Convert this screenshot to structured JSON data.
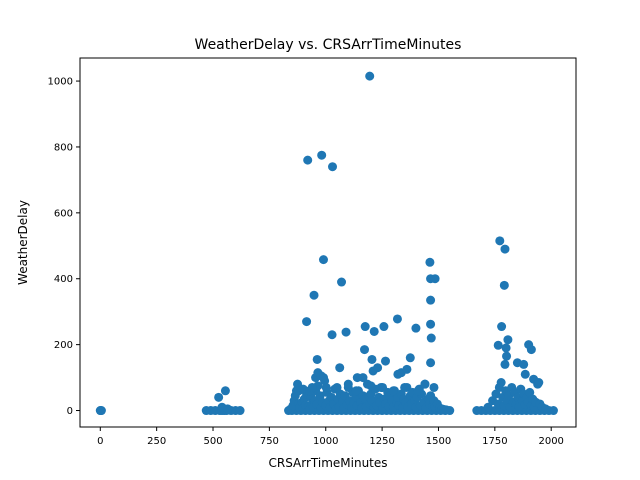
{
  "chart_data": {
    "type": "scatter",
    "title": "WeatherDelay vs. CRSArrTimeMinutes",
    "xlabel": "CRSArrTimeMinutes",
    "ylabel": "WeatherDelay",
    "xlim": [
      -90,
      2110
    ],
    "ylim": [
      -50,
      1070
    ],
    "xticks": [
      0,
      250,
      500,
      750,
      1000,
      1250,
      1500,
      1750,
      2000
    ],
    "yticks": [
      0,
      200,
      400,
      600,
      800,
      1000
    ],
    "grid": false,
    "legend": "none",
    "marker_color": "#1f77b4",
    "points": [
      [
        0,
        0
      ],
      [
        2,
        0
      ],
      [
        5,
        0
      ],
      [
        470,
        0
      ],
      [
        490,
        0
      ],
      [
        510,
        0
      ],
      [
        530,
        0
      ],
      [
        540,
        0
      ],
      [
        550,
        0
      ],
      [
        560,
        0
      ],
      [
        580,
        0
      ],
      [
        600,
        0
      ],
      [
        620,
        0
      ],
      [
        525,
        40
      ],
      [
        540,
        10
      ],
      [
        555,
        60
      ],
      [
        565,
        5
      ],
      [
        835,
        0
      ],
      [
        850,
        0
      ],
      [
        870,
        0
      ],
      [
        890,
        0
      ],
      [
        910,
        0
      ],
      [
        930,
        0
      ],
      [
        950,
        0
      ],
      [
        970,
        0
      ],
      [
        990,
        0
      ],
      [
        1010,
        0
      ],
      [
        1030,
        0
      ],
      [
        1050,
        0
      ],
      [
        1070,
        0
      ],
      [
        1090,
        0
      ],
      [
        1110,
        0
      ],
      [
        1130,
        0
      ],
      [
        1150,
        0
      ],
      [
        1170,
        0
      ],
      [
        1190,
        0
      ],
      [
        1210,
        0
      ],
      [
        1230,
        0
      ],
      [
        1250,
        0
      ],
      [
        1270,
        0
      ],
      [
        1290,
        0
      ],
      [
        1310,
        0
      ],
      [
        1330,
        0
      ],
      [
        1350,
        0
      ],
      [
        1370,
        0
      ],
      [
        1390,
        0
      ],
      [
        1410,
        0
      ],
      [
        1430,
        0
      ],
      [
        1450,
        0
      ],
      [
        1470,
        0
      ],
      [
        1490,
        0
      ],
      [
        1510,
        0
      ],
      [
        1530,
        0
      ],
      [
        1550,
        0
      ],
      [
        845,
        5
      ],
      [
        855,
        15
      ],
      [
        860,
        30
      ],
      [
        865,
        45
      ],
      [
        870,
        60
      ],
      [
        875,
        80
      ],
      [
        880,
        20
      ],
      [
        885,
        10
      ],
      [
        895,
        25
      ],
      [
        900,
        8
      ],
      [
        905,
        35
      ],
      [
        910,
        15
      ],
      [
        915,
        50
      ],
      [
        925,
        12
      ],
      [
        930,
        5
      ],
      [
        935,
        40
      ],
      [
        940,
        22
      ],
      [
        945,
        10
      ],
      [
        950,
        30
      ],
      [
        955,
        60
      ],
      [
        960,
        18
      ],
      [
        965,
        75
      ],
      [
        975,
        45
      ],
      [
        980,
        8
      ],
      [
        985,
        25
      ],
      [
        995,
        90
      ],
      [
        1000,
        15
      ],
      [
        1005,
        55
      ],
      [
        1015,
        30
      ],
      [
        1020,
        10
      ],
      [
        1025,
        40
      ],
      [
        1035,
        20
      ],
      [
        1040,
        65
      ],
      [
        1045,
        5
      ],
      [
        1055,
        35
      ],
      [
        1060,
        12
      ],
      [
        1065,
        50
      ],
      [
        1075,
        28
      ],
      [
        1080,
        8
      ],
      [
        1085,
        45
      ],
      [
        1095,
        18
      ],
      [
        1100,
        70
      ],
      [
        1105,
        30
      ],
      [
        1115,
        10
      ],
      [
        1120,
        55
      ],
      [
        1125,
        22
      ],
      [
        1135,
        40
      ],
      [
        1140,
        15
      ],
      [
        1145,
        60
      ],
      [
        1155,
        25
      ],
      [
        1160,
        8
      ],
      [
        1165,
        45
      ],
      [
        1175,
        35
      ],
      [
        1180,
        12
      ],
      [
        1185,
        80
      ],
      [
        1195,
        20
      ],
      [
        1200,
        50
      ],
      [
        1205,
        30
      ],
      [
        1215,
        10
      ],
      [
        1220,
        65
      ],
      [
        1225,
        15
      ],
      [
        1235,
        40
      ],
      [
        1240,
        25
      ],
      [
        1245,
        70
      ],
      [
        1255,
        8
      ],
      [
        1260,
        35
      ],
      [
        1265,
        20
      ],
      [
        1275,
        55
      ],
      [
        1280,
        12
      ],
      [
        1285,
        45
      ],
      [
        1295,
        30
      ],
      [
        1300,
        10
      ],
      [
        1305,
        60
      ],
      [
        1315,
        22
      ],
      [
        1320,
        40
      ],
      [
        1325,
        15
      ],
      [
        1335,
        50
      ],
      [
        1340,
        8
      ],
      [
        1345,
        35
      ],
      [
        1355,
        25
      ],
      [
        1360,
        70
      ],
      [
        1365,
        12
      ],
      [
        1375,
        45
      ],
      [
        1380,
        20
      ],
      [
        1385,
        55
      ],
      [
        1395,
        30
      ],
      [
        1400,
        10
      ],
      [
        1405,
        40
      ],
      [
        1415,
        65
      ],
      [
        1420,
        15
      ],
      [
        1425,
        50
      ],
      [
        1435,
        25
      ],
      [
        1440,
        80
      ],
      [
        1445,
        8
      ],
      [
        1455,
        35
      ],
      [
        1460,
        20
      ],
      [
        1465,
        45
      ],
      [
        1475,
        12
      ],
      [
        1480,
        30
      ],
      [
        1485,
        10
      ],
      [
        1495,
        20
      ],
      [
        1505,
        8
      ],
      [
        1515,
        5
      ],
      [
        1525,
        3
      ],
      [
        1535,
        2
      ],
      [
        880,
        60
      ],
      [
        900,
        65
      ],
      [
        928,
        60
      ],
      [
        940,
        70
      ],
      [
        955,
        100
      ],
      [
        962,
        155
      ],
      [
        965,
        115
      ],
      [
        980,
        105
      ],
      [
        990,
        100
      ],
      [
        1002,
        70
      ],
      [
        1050,
        70
      ],
      [
        1062,
        130
      ],
      [
        1100,
        80
      ],
      [
        1135,
        60
      ],
      [
        1140,
        100
      ],
      [
        1165,
        100
      ],
      [
        1172,
        185
      ],
      [
        1200,
        75
      ],
      [
        1210,
        120
      ],
      [
        1230,
        130
      ],
      [
        1252,
        70
      ],
      [
        1265,
        150
      ],
      [
        1300,
        60
      ],
      [
        1320,
        110
      ],
      [
        1335,
        115
      ],
      [
        1350,
        70
      ],
      [
        1360,
        125
      ],
      [
        1375,
        160
      ],
      [
        1410,
        60
      ],
      [
        1440,
        80
      ],
      [
        1465,
        145
      ],
      [
        1480,
        70
      ],
      [
        915,
        270
      ],
      [
        920,
        760
      ],
      [
        948,
        350
      ],
      [
        982,
        775
      ],
      [
        990,
        458
      ],
      [
        1028,
        230
      ],
      [
        1030,
        740
      ],
      [
        1070,
        390
      ],
      [
        1090,
        238
      ],
      [
        1175,
        255
      ],
      [
        1195,
        1015
      ],
      [
        1205,
        155
      ],
      [
        1215,
        240
      ],
      [
        1258,
        255
      ],
      [
        1318,
        278
      ],
      [
        1400,
        250
      ],
      [
        1462,
        450
      ],
      [
        1465,
        400
      ],
      [
        1465,
        335
      ],
      [
        1465,
        262
      ],
      [
        1468,
        220
      ],
      [
        1485,
        400
      ],
      [
        1670,
        0
      ],
      [
        1690,
        0
      ],
      [
        1710,
        0
      ],
      [
        1730,
        0
      ],
      [
        1750,
        0
      ],
      [
        1770,
        0
      ],
      [
        1790,
        0
      ],
      [
        1810,
        0
      ],
      [
        1830,
        0
      ],
      [
        1850,
        0
      ],
      [
        1870,
        0
      ],
      [
        1890,
        0
      ],
      [
        1910,
        0
      ],
      [
        1930,
        0
      ],
      [
        1950,
        0
      ],
      [
        1970,
        0
      ],
      [
        1990,
        0
      ],
      [
        2010,
        0
      ],
      [
        1720,
        10
      ],
      [
        1740,
        30
      ],
      [
        1755,
        50
      ],
      [
        1765,
        20
      ],
      [
        1770,
        70
      ],
      [
        1778,
        85
      ],
      [
        1785,
        40
      ],
      [
        1792,
        15
      ],
      [
        1798,
        60
      ],
      [
        1805,
        30
      ],
      [
        1812,
        45
      ],
      [
        1818,
        10
      ],
      [
        1825,
        70
      ],
      [
        1832,
        25
      ],
      [
        1838,
        55
      ],
      [
        1845,
        20
      ],
      [
        1852,
        40
      ],
      [
        1858,
        12
      ],
      [
        1865,
        65
      ],
      [
        1872,
        30
      ],
      [
        1878,
        50
      ],
      [
        1885,
        18
      ],
      [
        1892,
        40
      ],
      [
        1898,
        25
      ],
      [
        1905,
        55
      ],
      [
        1912,
        15
      ],
      [
        1918,
        35
      ],
      [
        1925,
        10
      ],
      [
        1932,
        25
      ],
      [
        1940,
        80
      ],
      [
        1950,
        20
      ],
      [
        1960,
        10
      ],
      [
        1975,
        5
      ],
      [
        1765,
        198
      ],
      [
        1772,
        515
      ],
      [
        1780,
        255
      ],
      [
        1792,
        380
      ],
      [
        1795,
        490
      ],
      [
        1800,
        190
      ],
      [
        1802,
        165
      ],
      [
        1808,
        215
      ],
      [
        1795,
        140
      ],
      [
        1850,
        145
      ],
      [
        1878,
        140
      ],
      [
        1885,
        110
      ],
      [
        1900,
        200
      ],
      [
        1912,
        185
      ],
      [
        1922,
        95
      ],
      [
        1945,
        85
      ]
    ]
  }
}
